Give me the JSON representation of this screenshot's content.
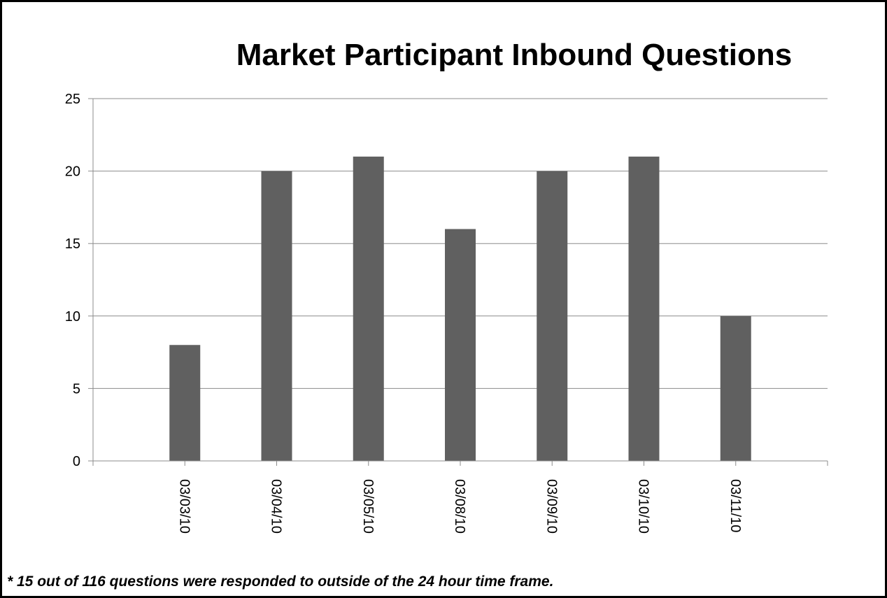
{
  "chart_data": {
    "type": "bar",
    "title": "Market Participant Inbound Questions",
    "categories": [
      null,
      "03/03/10",
      "03/04/10",
      "03/05/10",
      "03/08/10",
      "03/09/10",
      "03/10/10",
      "03/11/10",
      null
    ],
    "values": [
      null,
      8,
      20,
      21,
      16,
      20,
      21,
      10,
      null
    ],
    "color": "#606060",
    "ylim": [
      0,
      25
    ],
    "yticks": [
      0,
      5,
      10,
      15,
      20,
      25
    ],
    "grid": true,
    "footnote": "* 15 out of 116 questions were responded to outside of the 24 hour time frame."
  }
}
